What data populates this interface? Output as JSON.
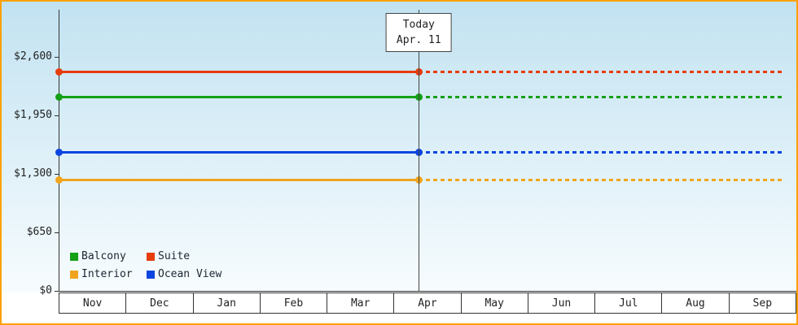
{
  "chart_data": {
    "type": "line",
    "title": "",
    "xlabel": "",
    "ylabel": "",
    "x_categories": [
      "Nov",
      "Dec",
      "Jan",
      "Feb",
      "Mar",
      "Apr",
      "May",
      "Jun",
      "Jul",
      "Aug",
      "Sep"
    ],
    "y_axis": {
      "tick_labels": [
        "$0",
        "$650",
        "$1,300",
        "$1,950",
        "$2,600"
      ],
      "tick_values": [
        0,
        650,
        1300,
        1950,
        2600
      ],
      "max_value": 2600
    },
    "today_marker": {
      "line1": "Today",
      "line2": "Apr. 11",
      "month_index": 5,
      "day_fraction": 0.37
    },
    "series": [
      {
        "name": "Suite",
        "color": "#e73c0c",
        "value": 2430,
        "style": "solid-then-dashed"
      },
      {
        "name": "Balcony",
        "color": "#15a015",
        "value": 2150,
        "style": "solid-then-dashed"
      },
      {
        "name": "Ocean View",
        "color": "#0c45df",
        "value": 1540,
        "style": "solid-then-dashed"
      },
      {
        "name": "Interior",
        "color": "#f0a51e",
        "value": 1235,
        "style": "solid-then-dashed"
      }
    ],
    "legend": {
      "position": "bottom-left",
      "items": [
        {
          "label": "Balcony",
          "color": "#15a015"
        },
        {
          "label": "Suite",
          "color": "#e73c0c"
        },
        {
          "label": "Interior",
          "color": "#f0a51e"
        },
        {
          "label": "Ocean View",
          "color": "#0c45df"
        }
      ]
    },
    "frame_border_color": "#ffa000",
    "background": {
      "top": "#c2e2f1",
      "bottom": "#f7fcfe"
    },
    "grid": false
  }
}
